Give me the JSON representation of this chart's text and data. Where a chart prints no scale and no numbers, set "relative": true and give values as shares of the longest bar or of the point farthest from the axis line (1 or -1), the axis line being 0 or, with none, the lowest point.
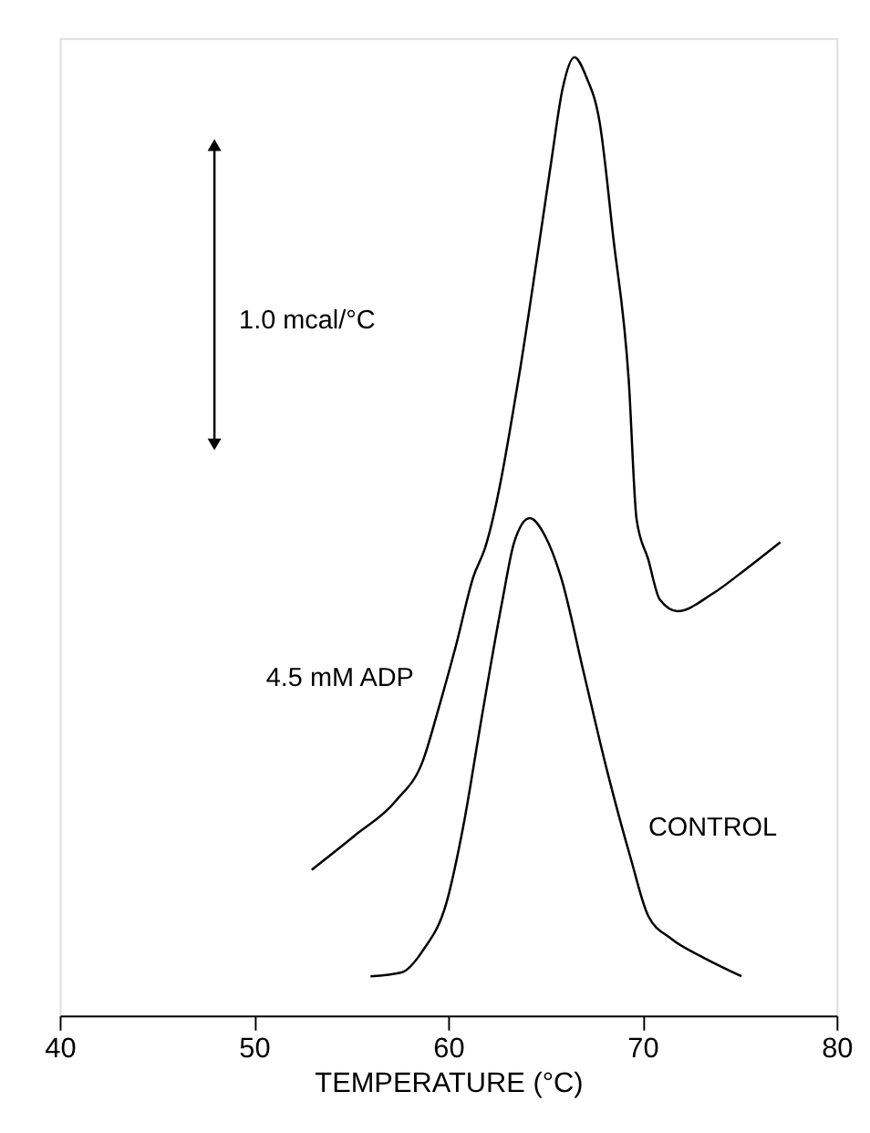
{
  "chart_data": {
    "type": "line",
    "relative": true,
    "xlabel": "TEMPERATURE (°C)",
    "xlim": [
      40,
      80
    ],
    "xticks": [
      40,
      50,
      60,
      70,
      80
    ],
    "grid": false,
    "marker": "none",
    "line_style": "solid",
    "annotations": [
      "1.0 mcal/°C"
    ],
    "series": [
      {
        "name": "4.5 mM ADP",
        "color": "#000000",
        "x": [
          52.97,
          55.2,
          57.3,
          58.7,
          59.5,
          60.4,
          61.3,
          61.9,
          63.7,
          64.6,
          65.3,
          65.9,
          66.5,
          67.1,
          67.8,
          68.5,
          69.3,
          69.7,
          70.3,
          70.9,
          71.8,
          73.6,
          75.4,
          77.1
        ],
        "values": [
          0.152,
          0.188,
          0.224,
          0.266,
          0.32,
          0.386,
          0.458,
          0.488,
          0.674,
          0.794,
          0.89,
          0.968,
          1.0,
          0.98,
          0.932,
          0.812,
          0.662,
          0.518,
          0.476,
          0.434,
          0.422,
          0.44,
          0.467,
          0.494
        ]
      },
      {
        "name": "CONTROL",
        "color": "#000000",
        "x": [
          56.0,
          57.6,
          58.7,
          59.9,
          60.8,
          61.7,
          62.8,
          63.4,
          64.2,
          65.0,
          65.8,
          67.0,
          68.2,
          69.4,
          70.3,
          71.5,
          73.0,
          75.1
        ],
        "values": [
          0.041,
          0.045,
          0.068,
          0.117,
          0.2,
          0.308,
          0.434,
          0.494,
          0.519,
          0.5,
          0.458,
          0.356,
          0.254,
          0.164,
          0.104,
          0.08,
          0.062,
          0.041
        ]
      }
    ]
  }
}
